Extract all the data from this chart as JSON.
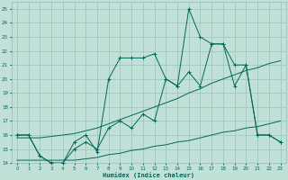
{
  "title": "",
  "xlabel": "Humidex (Indice chaleur)",
  "bg_color": "#c0e0d8",
  "grid_color": "#90bbb4",
  "line_color": "#006858",
  "xlim": [
    -0.5,
    23.5
  ],
  "ylim": [
    14,
    25.5
  ],
  "xticks": [
    0,
    1,
    2,
    3,
    4,
    5,
    6,
    7,
    8,
    9,
    10,
    11,
    12,
    13,
    14,
    15,
    16,
    17,
    18,
    19,
    20,
    21,
    22,
    23
  ],
  "yticks": [
    14,
    15,
    16,
    17,
    18,
    19,
    20,
    21,
    22,
    23,
    24,
    25
  ],
  "line_bottom_x": [
    0,
    1,
    2,
    3,
    4,
    5,
    6,
    7,
    8,
    9,
    10,
    11,
    12,
    13,
    14,
    15,
    16,
    17,
    18,
    19,
    20,
    21,
    22,
    23
  ],
  "line_bottom_y": [
    14.2,
    14.2,
    14.2,
    14.2,
    14.2,
    14.2,
    14.3,
    14.4,
    14.6,
    14.7,
    14.9,
    15.0,
    15.2,
    15.3,
    15.5,
    15.6,
    15.8,
    16.0,
    16.2,
    16.3,
    16.5,
    16.6,
    16.8,
    17.0
  ],
  "line_top_x": [
    0,
    1,
    2,
    3,
    4,
    5,
    6,
    7,
    8,
    9,
    10,
    11,
    12,
    13,
    14,
    15,
    16,
    17,
    18,
    19,
    20,
    21,
    22,
    23
  ],
  "line_top_y": [
    15.8,
    15.8,
    15.8,
    15.9,
    16.0,
    16.1,
    16.3,
    16.5,
    16.8,
    17.1,
    17.4,
    17.7,
    18.0,
    18.3,
    18.6,
    19.0,
    19.3,
    19.7,
    20.0,
    20.3,
    20.6,
    20.8,
    21.1,
    21.3
  ],
  "line_main1_x": [
    0,
    1,
    2,
    3,
    4,
    5,
    6,
    7,
    8,
    9,
    10,
    11,
    12,
    13,
    14,
    15,
    16,
    17,
    18,
    19,
    20,
    21,
    22,
    23
  ],
  "line_main1_y": [
    16,
    16,
    14.5,
    14,
    14,
    15,
    15.5,
    15,
    16.5,
    17,
    16.5,
    17.5,
    17,
    20,
    19.5,
    20.5,
    19.5,
    22.5,
    22.5,
    21,
    21,
    16,
    16,
    15.5
  ],
  "line_main2_x": [
    0,
    1,
    2,
    3,
    4,
    5,
    6,
    7,
    8,
    9,
    10,
    11,
    12,
    13,
    14,
    15,
    16,
    17,
    18,
    19,
    20,
    21,
    22,
    23
  ],
  "line_main2_y": [
    16,
    16,
    14.5,
    14,
    14,
    15.5,
    16,
    14.8,
    20,
    21.5,
    21.5,
    21.5,
    21.8,
    20,
    19.5,
    25,
    23,
    22.5,
    22.5,
    19.5,
    21,
    16,
    16,
    15.5
  ]
}
